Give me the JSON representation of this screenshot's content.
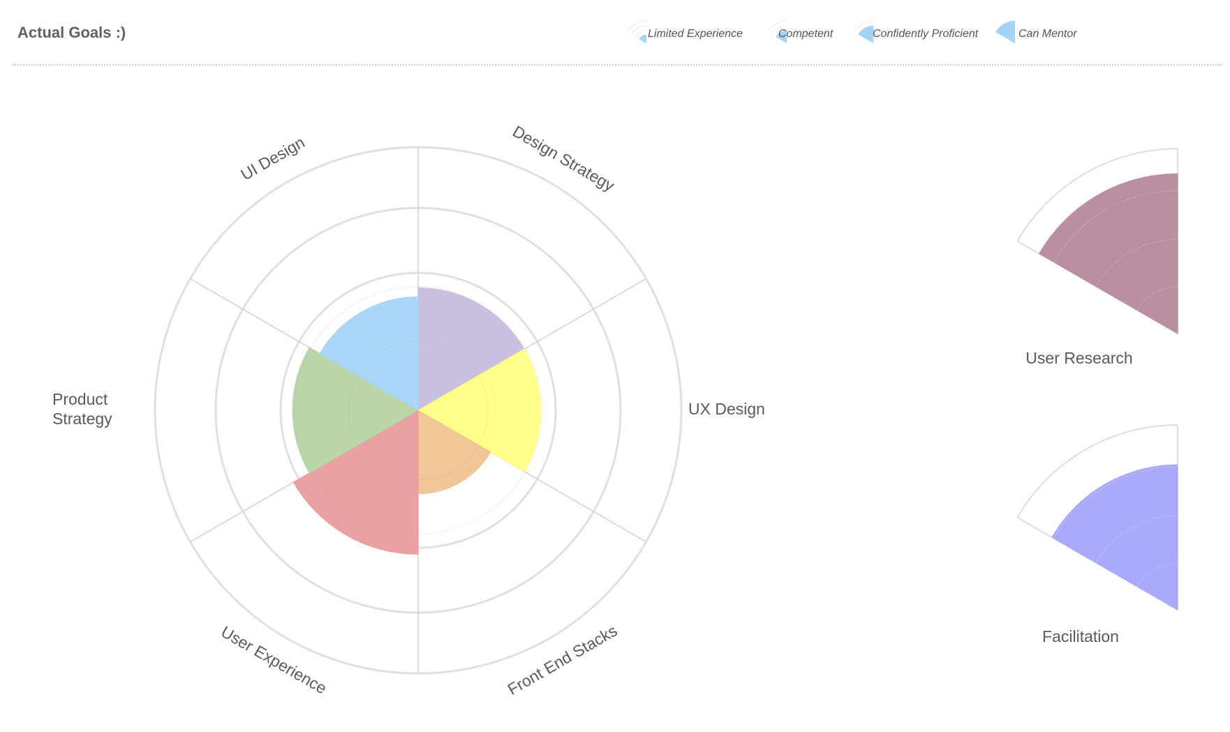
{
  "header": {
    "title": "Actual Goals :)"
  },
  "legend": {
    "items": [
      {
        "label": "Limited Experience",
        "level": 1
      },
      {
        "label": "Competent",
        "level": 2
      },
      {
        "label": "Confidently Proficient",
        "level": 3
      },
      {
        "label": "Can Mentor",
        "level": 4
      }
    ],
    "color": "#a3d4f7"
  },
  "chart_data": [
    {
      "type": "polar-area",
      "max_level": 4,
      "levels": [
        "Limited Experience",
        "Competent",
        "Confidently Proficient",
        "Can Mentor"
      ],
      "grid": true,
      "categories": [
        "Design Strategy",
        "UX Design",
        "Front End Stacks",
        "User Experience",
        "Product Strategy",
        "UI Design"
      ],
      "category_labels": [
        "Design Strategy",
        "UX Design",
        "Front End Stacks",
        "User Experience",
        "Product\nStrategy",
        "UI Design"
      ],
      "values": [
        1.75,
        1.75,
        1.1,
        2.1,
        1.8,
        1.6
      ],
      "colors": [
        "#c5bbdd",
        "#ffff7f",
        "#f0c28f",
        "#e9989a",
        "#b5d4a3",
        "#a3d4f7"
      ]
    },
    {
      "type": "polar-area",
      "category": "User Research",
      "value": 3.4,
      "max_level": 4,
      "color": "#b98fa1"
    },
    {
      "type": "polar-area",
      "category": "Facilitation",
      "value": 3.05,
      "max_level": 4,
      "color": "#aaa9fb"
    }
  ]
}
